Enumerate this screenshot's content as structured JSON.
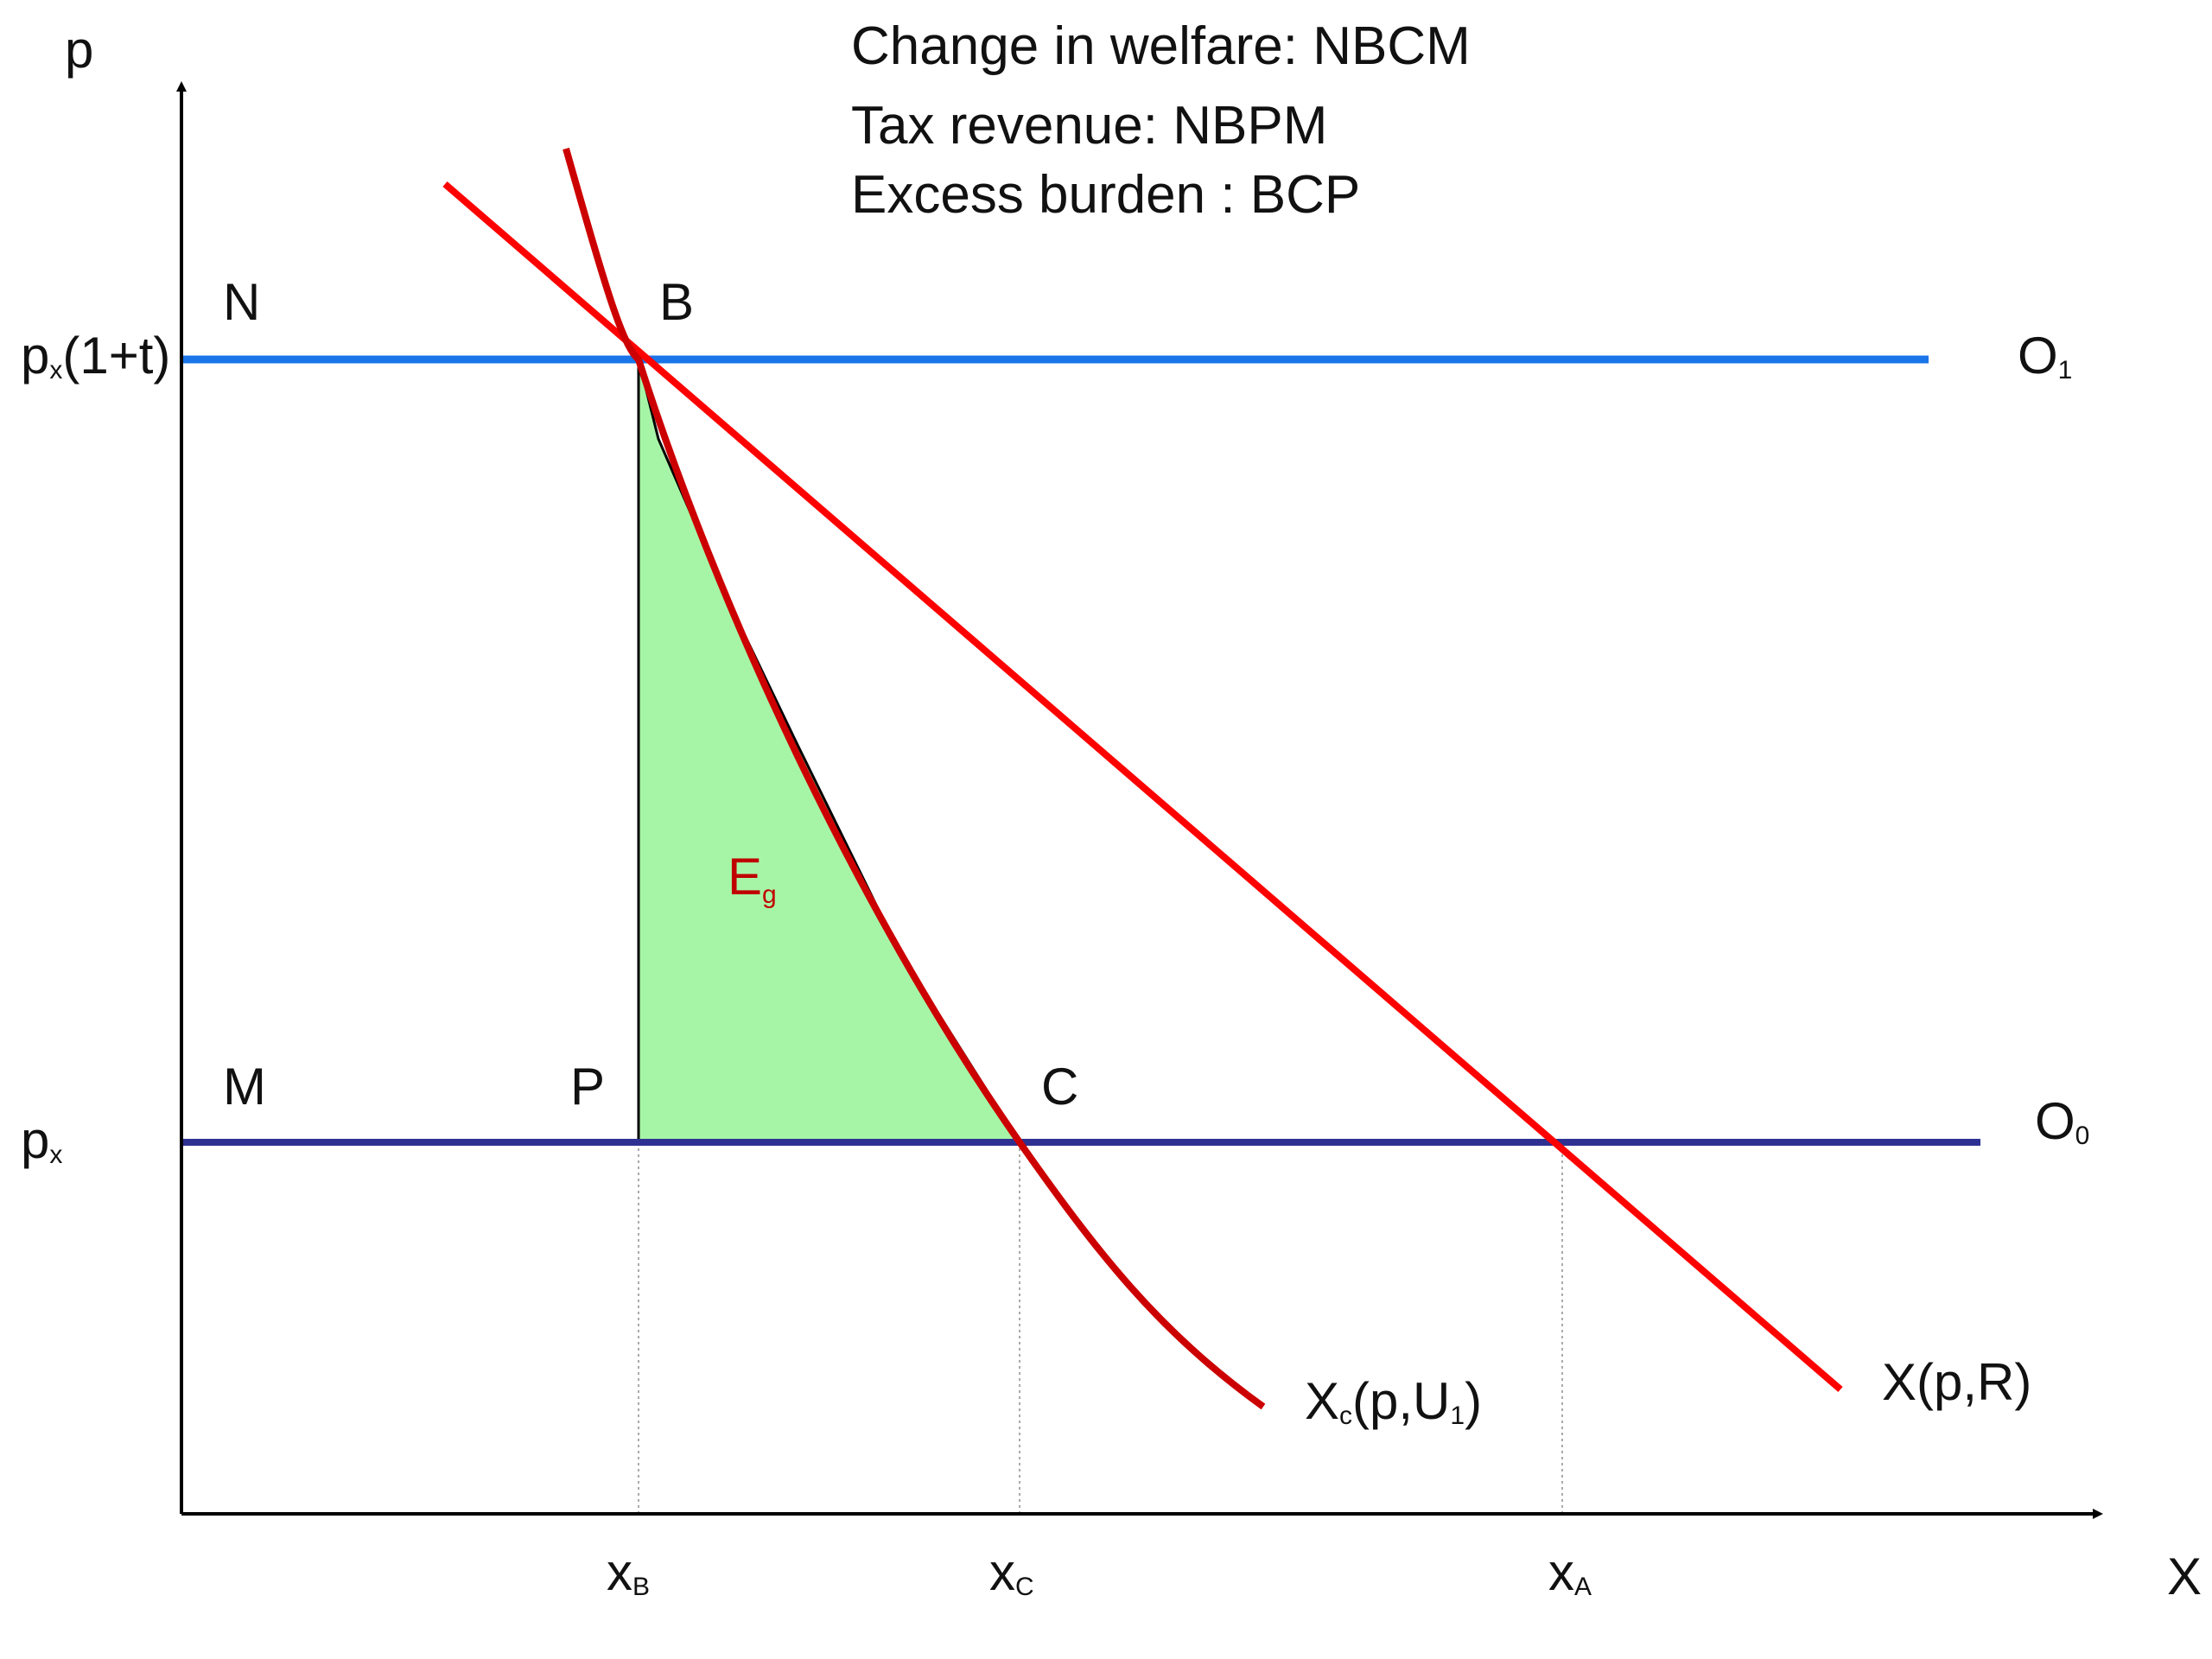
{
  "info": {
    "welfare": "Change in welfare: NBCM",
    "revenue": "Tax revenue: NBPM",
    "burden": "Excess burden : BCP"
  },
  "axes": {
    "y_label": "p",
    "x_label": "X"
  },
  "price_levels": {
    "taxed": {
      "main": "p",
      "sub": "x",
      "rest": "(1+t)"
    },
    "base": {
      "main": "p",
      "sub": "x"
    }
  },
  "points": {
    "n": "N",
    "b": "B",
    "m": "M",
    "p": "P",
    "c": "C"
  },
  "offer_lines": {
    "o1": {
      "main": "O",
      "sub": "1"
    },
    "o0": {
      "main": "O",
      "sub": "0"
    }
  },
  "curves": {
    "compensated": {
      "main": "X",
      "sub": "c",
      "mid": "(p,U",
      "sub2": "1",
      "end": ")"
    },
    "ordinary": "X(p,R)"
  },
  "quantities": {
    "xb": {
      "main": "x",
      "sub": "B"
    },
    "xc": {
      "main": "x",
      "sub": "C"
    },
    "xa": {
      "main": "x",
      "sub": "A"
    }
  },
  "region": {
    "main": "E",
    "sub": "g"
  },
  "colors": {
    "taxed_price_line": "#1a75e8",
    "base_price_line": "#2e3192",
    "demand_curves": "#ff0000",
    "compensated_curve": "#cc0000",
    "excess_burden_fill": "#a6f5a6",
    "region_label": "#c00000"
  }
}
